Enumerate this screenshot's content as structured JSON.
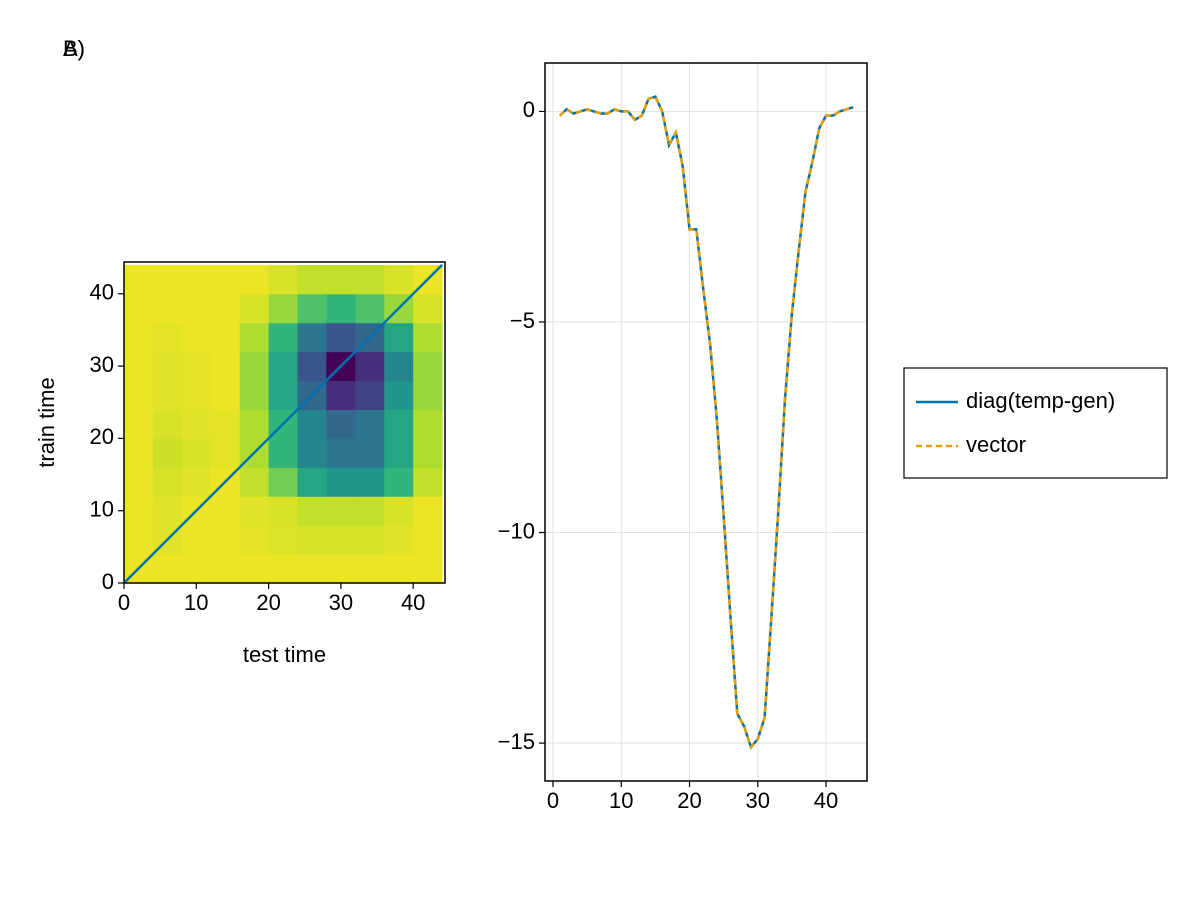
{
  "chart_data": [
    {
      "type": "heatmap",
      "label": "A)",
      "xlabel": "test time",
      "ylabel": "train time",
      "xlim": [
        0,
        44.4
      ],
      "ylim": [
        0,
        44.4
      ],
      "xticks": [
        0,
        10,
        20,
        30,
        40
      ],
      "yticks": [
        0,
        10,
        20,
        30,
        40
      ],
      "colormap": "viridis",
      "zlim": [
        -15.1,
        0.4
      ],
      "x_edges": [
        0,
        4,
        8,
        12,
        16,
        20,
        24,
        28,
        32,
        36,
        40,
        44
      ],
      "y_edges": [
        0,
        4,
        8,
        12,
        16,
        20,
        24,
        28,
        32,
        36,
        40,
        44
      ],
      "z": [
        [
          0,
          0,
          0,
          0,
          0,
          0,
          0,
          0,
          0,
          0,
          0
        ],
        [
          0,
          -0.3,
          0,
          0,
          -0.2,
          -0.4,
          -0.5,
          -0.5,
          -0.5,
          -0.3,
          0
        ],
        [
          0,
          -0.3,
          0,
          0,
          -0.3,
          -0.5,
          -1,
          -1,
          -1,
          -0.5,
          0
        ],
        [
          0,
          -0.5,
          -0.3,
          0,
          -1,
          -3,
          -6,
          -7,
          -7,
          -5,
          -1
        ],
        [
          0,
          -0.8,
          -0.5,
          -0.2,
          -1.5,
          -5,
          -8,
          -9,
          -9,
          -6,
          -1.5
        ],
        [
          0,
          -0.5,
          -0.3,
          -0.2,
          -1.5,
          -5,
          -8,
          -10,
          -9,
          -6,
          -1.5
        ],
        [
          0,
          -0.3,
          -0.2,
          0,
          -2,
          -6,
          -10,
          -13,
          -12,
          -7,
          -2
        ],
        [
          0,
          -0.3,
          -0.2,
          0,
          -2,
          -6,
          -11,
          -15,
          -13,
          -8,
          -2
        ],
        [
          0,
          -0.2,
          0,
          0,
          -1.5,
          -5,
          -9,
          -11,
          -10,
          -6,
          -1.5
        ],
        [
          0,
          0,
          0,
          0,
          -0.5,
          -2,
          -4,
          -5,
          -4,
          -2,
          -0.5
        ],
        [
          0,
          0,
          0,
          0,
          0,
          -0.5,
          -1,
          -1,
          -1,
          -0.5,
          0
        ]
      ],
      "line": {
        "color": "#0072b2",
        "x": [
          0,
          44
        ],
        "values": [
          0,
          44
        ]
      }
    },
    {
      "type": "line",
      "label": "B)",
      "xlim": [
        -1.17,
        46
      ],
      "ylim": [
        -15.9,
        1.15
      ],
      "xticks": [
        0,
        10,
        20,
        30,
        40
      ],
      "yticks": [
        {
          "value": 0,
          "label": "0"
        },
        {
          "value": -5,
          "label": "−5"
        },
        {
          "value": -10,
          "label": "−10"
        },
        {
          "value": -15,
          "label": "−15"
        }
      ],
      "grid": true,
      "legend": "right",
      "x": [
        1,
        2,
        3,
        4,
        5,
        6,
        7,
        8,
        9,
        10,
        11,
        12,
        13,
        14,
        15,
        16,
        17,
        18,
        19,
        20,
        21,
        22,
        23,
        24,
        25,
        26,
        27,
        28,
        29,
        30,
        31,
        32,
        33,
        34,
        35,
        36,
        37,
        38,
        39,
        40,
        41,
        42,
        43,
        44
      ],
      "series": [
        {
          "name": "diag(temp-gen)",
          "color": "#0072b2",
          "dash": "solid",
          "values": [
            -0.1,
            0.05,
            -0.05,
            0,
            0.05,
            0,
            -0.05,
            -0.05,
            0.05,
            0,
            0,
            -0.2,
            -0.1,
            0.3,
            0.35,
            0,
            -0.8,
            -0.5,
            -1.3,
            -2.8,
            -2.8,
            -4.2,
            -5.5,
            -7.3,
            -9.6,
            -12,
            -14.3,
            -14.6,
            -15.1,
            -14.9,
            -14.4,
            -12,
            -9.5,
            -6.8,
            -4.8,
            -3.3,
            -1.9,
            -1.2,
            -0.4,
            -0.1,
            -0.1,
            0,
            0.05,
            0.1
          ]
        },
        {
          "name": "vector",
          "color": "#e69f00",
          "dash": "dashed",
          "values": [
            -0.1,
            0.05,
            -0.05,
            0,
            0.05,
            0,
            -0.05,
            -0.05,
            0.05,
            0,
            0,
            -0.2,
            -0.1,
            0.3,
            0.35,
            0,
            -0.8,
            -0.5,
            -1.3,
            -2.8,
            -2.8,
            -4.2,
            -5.5,
            -7.3,
            -9.6,
            -12,
            -14.3,
            -14.6,
            -15.1,
            -14.9,
            -14.4,
            -12,
            -9.5,
            -6.8,
            -4.8,
            -3.3,
            -1.9,
            -1.2,
            -0.4,
            -0.1,
            -0.1,
            0,
            0.05,
            0.1
          ]
        }
      ]
    }
  ]
}
